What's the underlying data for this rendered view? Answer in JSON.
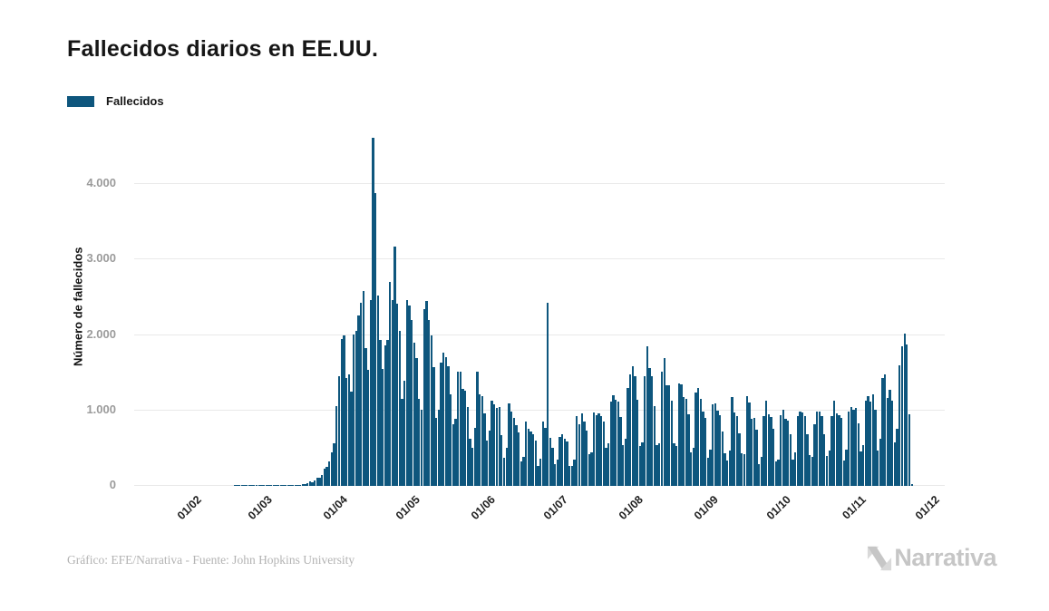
{
  "header": {
    "title": "Fallecidos diarios en EE.UU."
  },
  "legend": {
    "label": "Fallecidos"
  },
  "footer": {
    "credit": "Gráfico: EFE/Narrativa - Fuente: John Hopkins University",
    "brand": "Narrativa"
  },
  "colors": {
    "bar": "#0e567d",
    "grid": "#e9e9e9",
    "y_tick_text": "#9b9b9b",
    "x_tick_text": "#222222",
    "title_text": "#161616",
    "footer_text": "#b3b3b3",
    "logo_gray": "#c6c6c6",
    "logo_gray_light": "#d9d9d9"
  },
  "chart_data": {
    "type": "bar",
    "title": "Fallecidos diarios en EE.UU.",
    "series_name": "Fallecidos",
    "xlabel": "",
    "ylabel": "Número de fallecidos",
    "ylim": [
      0,
      4760
    ],
    "grid": "horizontal",
    "legend_position": "top-left",
    "start_date": "22/01/2020",
    "end_date": "22/11/2020",
    "domain": {
      "offset_days": 15,
      "total_days": 334
    },
    "y_ticks": [
      {
        "value": 0,
        "label": "0"
      },
      {
        "value": 1000,
        "label": "1.000"
      },
      {
        "value": 2000,
        "label": "2.000"
      },
      {
        "value": 3000,
        "label": "3.000"
      },
      {
        "value": 4000,
        "label": "4.000"
      }
    ],
    "x_ticks": [
      {
        "label": "01/02",
        "day_index": 10
      },
      {
        "label": "01/03",
        "day_index": 39
      },
      {
        "label": "01/04",
        "day_index": 70
      },
      {
        "label": "01/05",
        "day_index": 100
      },
      {
        "label": "01/06",
        "day_index": 131
      },
      {
        "label": "01/07",
        "day_index": 161
      },
      {
        "label": "01/08",
        "day_index": 192
      },
      {
        "label": "01/09",
        "day_index": 223
      },
      {
        "label": "01/10",
        "day_index": 253
      },
      {
        "label": "01/11",
        "day_index": 284
      },
      {
        "label": "01/12",
        "day_index": 314
      }
    ],
    "values": [
      0,
      0,
      0,
      0,
      0,
      0,
      0,
      0,
      0,
      0,
      0,
      0,
      0,
      0,
      0,
      0,
      0,
      0,
      0,
      0,
      0,
      0,
      0,
      0,
      0,
      0,
      1,
      1,
      1,
      1,
      1,
      1,
      1,
      1,
      1,
      1,
      1,
      1,
      1,
      1,
      2,
      4,
      3,
      2,
      3,
      4,
      5,
      7,
      4,
      8,
      7,
      12,
      9,
      17,
      24,
      19,
      41,
      57,
      49,
      69,
      113,
      111,
      140,
      225,
      247,
      330,
      441,
      560,
      1060,
      1450,
      1950,
      1990,
      1430,
      1480,
      1250,
      2010,
      2060,
      2260,
      2430,
      2590,
      1830,
      1540,
      2460,
      4620,
      3880,
      2530,
      1930,
      1550,
      1860,
      1940,
      2700,
      2460,
      3170,
      2420,
      2050,
      1150,
      1400,
      2470,
      2390,
      2200,
      1900,
      1690,
      1150,
      1010,
      2350,
      2450,
      2200,
      1990,
      1570,
      900,
      1010,
      1630,
      1770,
      1710,
      1590,
      1220,
      820,
      890,
      1510,
      1520,
      1290,
      1260,
      1040,
      620,
      500,
      770,
      1510,
      1220,
      1190,
      960,
      600,
      730,
      1130,
      1080,
      1030,
      1040,
      670,
      370,
      500,
      1090,
      980,
      900,
      800,
      710,
      330,
      380,
      850,
      760,
      720,
      680,
      600,
      270,
      360,
      850,
      770,
      2430,
      640,
      510,
      290,
      350,
      650,
      680,
      620,
      590,
      260,
      270,
      350,
      930,
      820,
      960,
      850,
      730,
      420,
      440,
      970,
      940,
      960,
      920,
      850,
      510,
      560,
      1120,
      1200,
      1140,
      1120,
      910,
      540,
      630,
      1300,
      1480,
      1590,
      1450,
      1140,
      530,
      580,
      1450,
      1855,
      1560,
      1450,
      1060,
      540,
      570,
      1510,
      1700,
      1340,
      1330,
      1130,
      570,
      530,
      1360,
      1350,
      1180,
      1160,
      950,
      450,
      510,
      1240,
      1300,
      1150,
      980,
      900,
      370,
      480,
      1080,
      1090,
      1000,
      940,
      720,
      430,
      340,
      470,
      1180,
      970,
      920,
      700,
      430,
      420,
      1190,
      1110,
      890,
      900,
      750,
      290,
      390,
      930,
      1130,
      950,
      910,
      760,
      320,
      350,
      940,
      1010,
      890,
      860,
      690,
      350,
      450,
      930,
      990,
      970,
      920,
      680,
      410,
      390,
      820,
      990,
      980,
      920,
      690,
      400,
      470,
      930,
      1130,
      960,
      940,
      900,
      340,
      480,
      990,
      1040,
      1010,
      1030,
      830,
      460,
      540,
      1130,
      1190,
      1120,
      1210,
      1010,
      470,
      620,
      1430,
      1480,
      1170,
      1280,
      1130,
      580,
      760,
      1600,
      1850,
      2020,
      1870,
      950,
      30
    ]
  }
}
